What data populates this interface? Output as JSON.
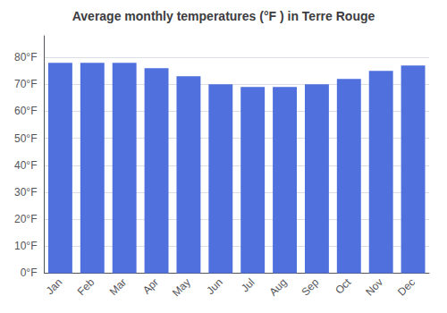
{
  "chart_data": {
    "type": "bar",
    "title": "Average monthly temperatures (°F ) in Terre Rouge",
    "categories": [
      "Jan",
      "Feb",
      "Mar",
      "Apr",
      "May",
      "Jun",
      "Jul",
      "Aug",
      "Sep",
      "Oct",
      "Nov",
      "Dec"
    ],
    "values": [
      78,
      78,
      78,
      76,
      73,
      70,
      69,
      69,
      70,
      72,
      75,
      77
    ],
    "ylim": [
      0,
      88
    ],
    "yticks": [
      {
        "value": 0,
        "label": "0°F"
      },
      {
        "value": 10,
        "label": "10°F"
      },
      {
        "value": 20,
        "label": "20°F"
      },
      {
        "value": 30,
        "label": "30°F"
      },
      {
        "value": 40,
        "label": "40°F"
      },
      {
        "value": 50,
        "label": "50°F"
      },
      {
        "value": 60,
        "label": "60°F"
      },
      {
        "value": 70,
        "label": "70°F"
      },
      {
        "value": 80,
        "label": "80°F"
      }
    ],
    "grid": true
  }
}
